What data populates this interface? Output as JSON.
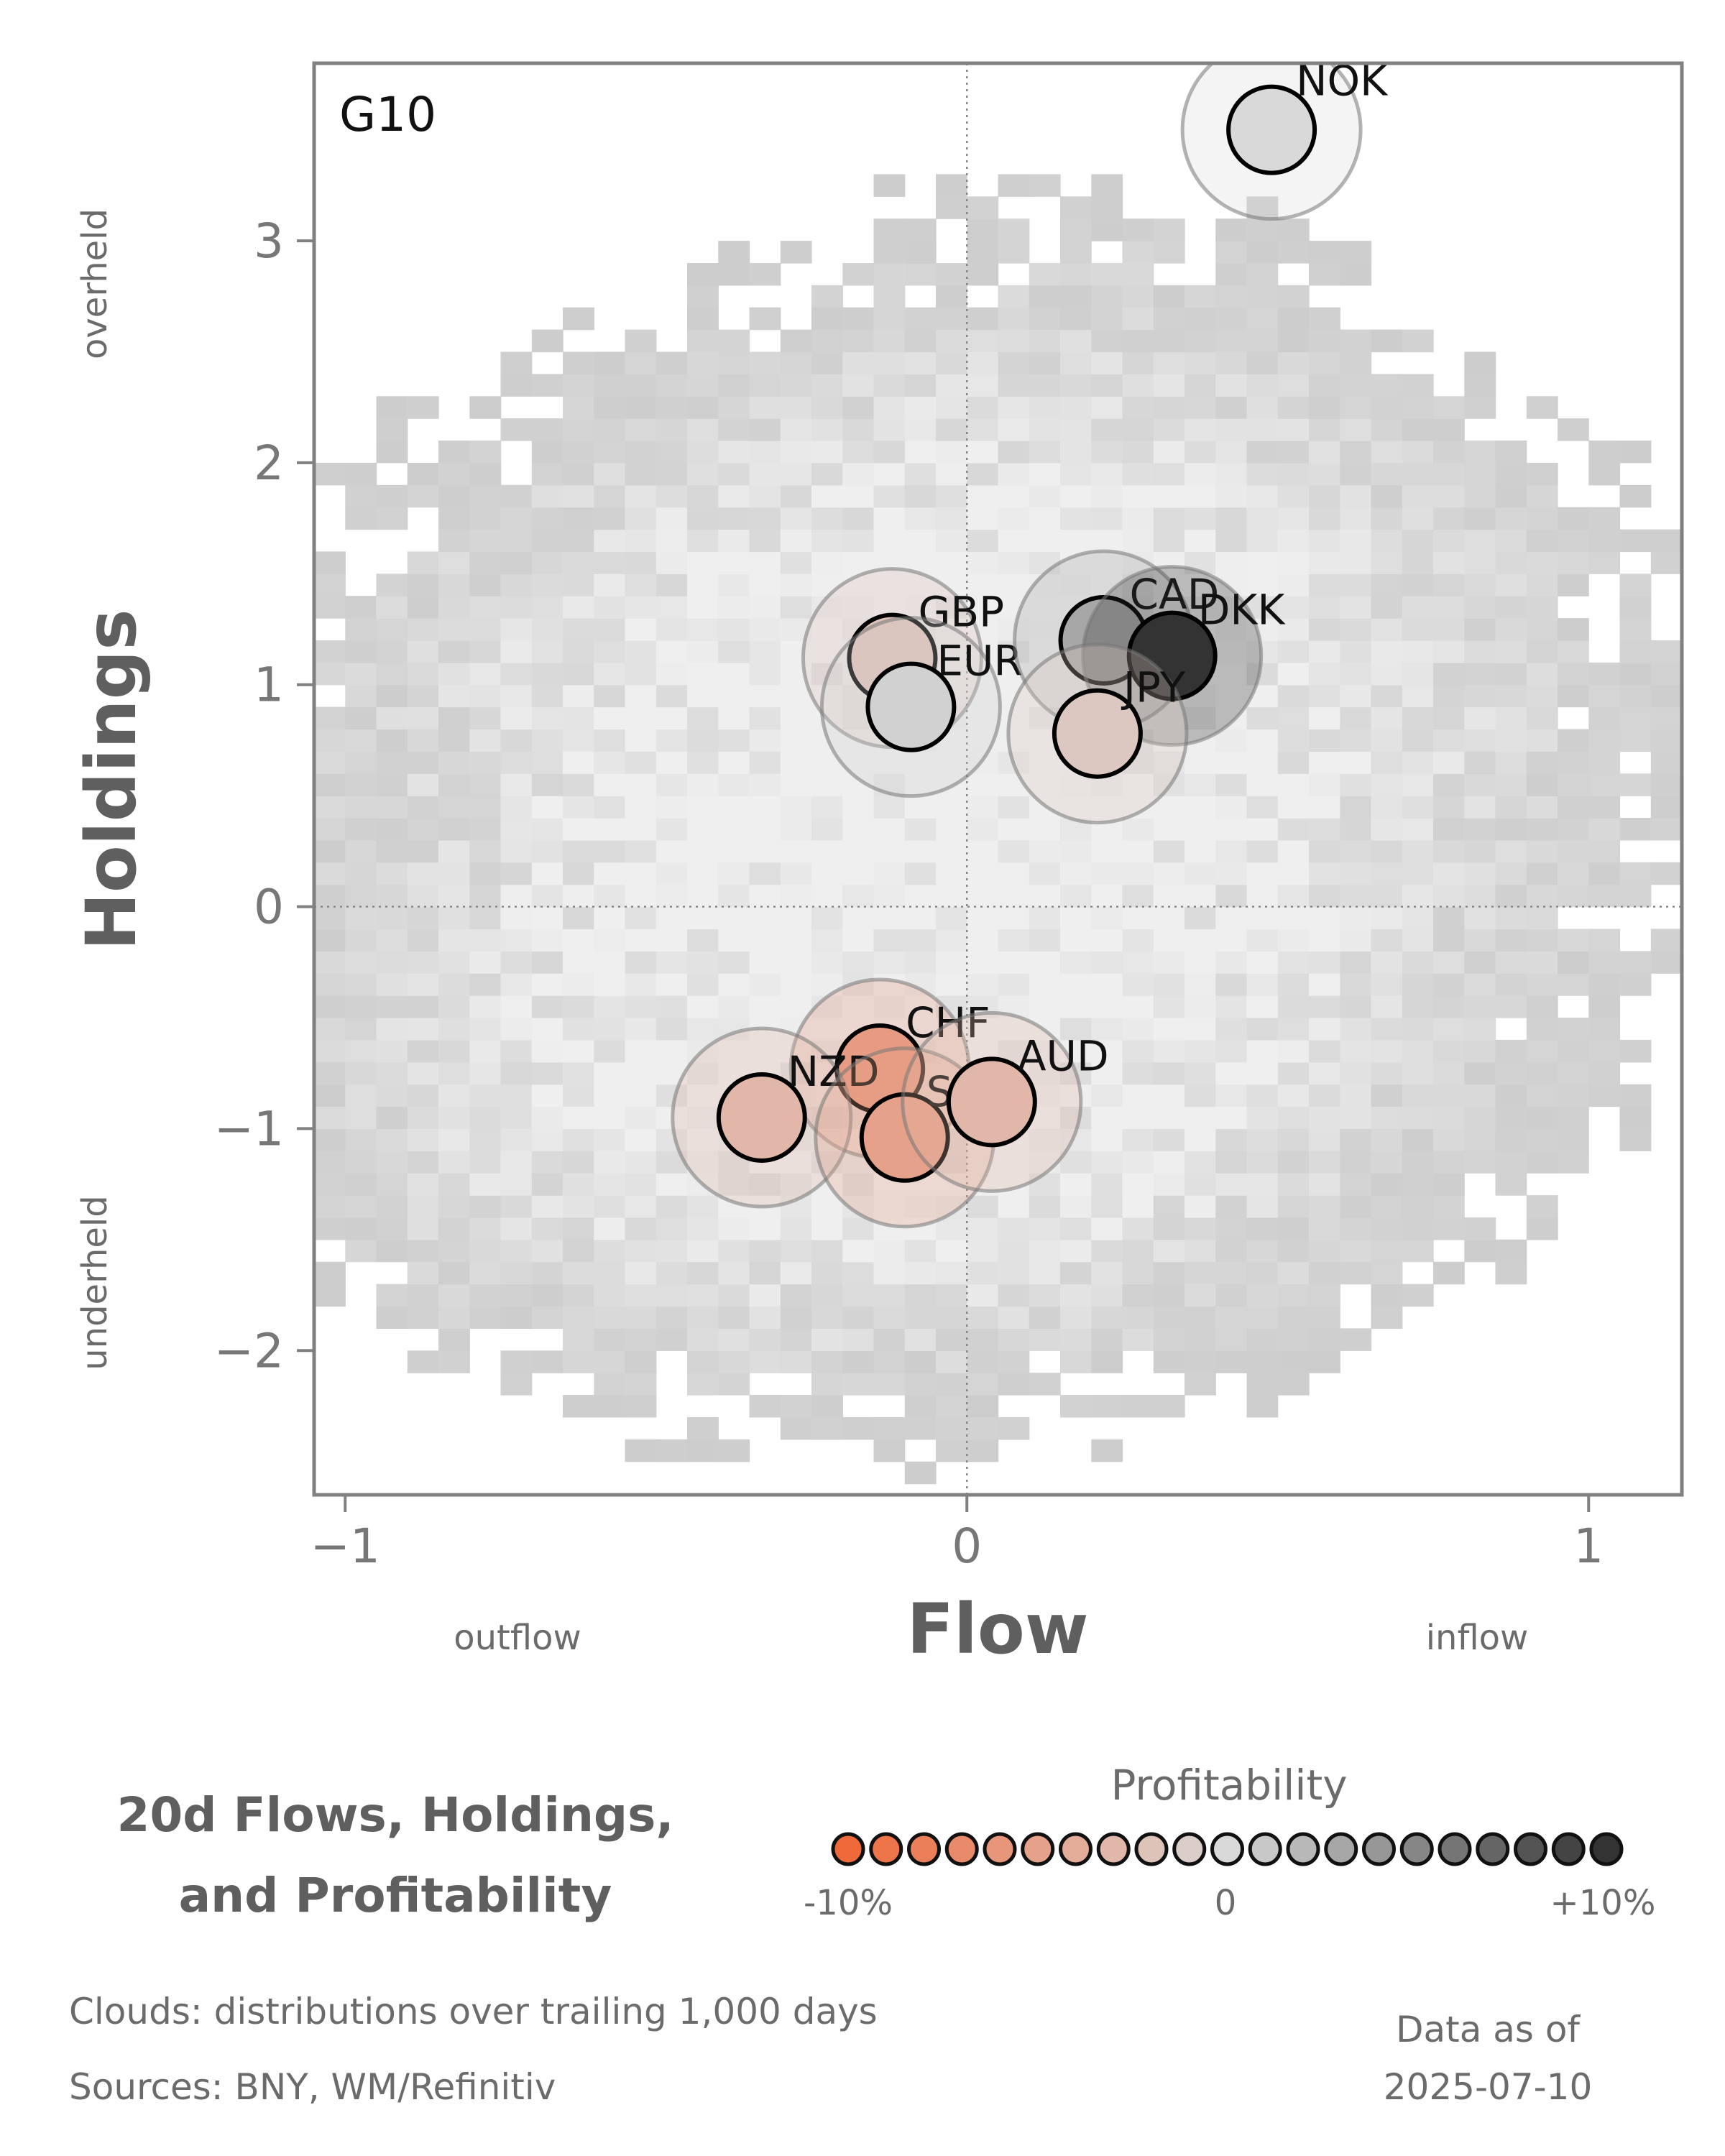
{
  "chart_data": {
    "type": "scatter",
    "panel_label": "G10",
    "title_line1": "20d Flows, Holdings,",
    "title_line2": "and Profitability",
    "xlabel": "Flow",
    "ylabel": "Holdings",
    "x_side_labels": {
      "left": "outflow",
      "right": "inflow"
    },
    "y_side_labels": {
      "top": "overheld",
      "bottom": "underheld"
    },
    "xlim": [
      -1.05,
      1.15
    ],
    "ylim": [
      -2.65,
      3.8
    ],
    "xticks": [
      {
        "value": -1,
        "label": "−1"
      },
      {
        "value": 0,
        "label": "0"
      },
      {
        "value": 1,
        "label": "1"
      }
    ],
    "yticks": [
      {
        "value": -2,
        "label": "−2"
      },
      {
        "value": -1,
        "label": "−1"
      },
      {
        "value": 0,
        "label": "0"
      },
      {
        "value": 1,
        "label": "1"
      },
      {
        "value": 2,
        "label": "2"
      },
      {
        "value": 3,
        "label": "3"
      }
    ],
    "reference_lines": {
      "x": 0,
      "y": 0
    },
    "background": "2D histogram clouds: distributions over trailing 1,000 days",
    "points": [
      {
        "currency": "NOK",
        "flow": 0.49,
        "holdings": 3.5,
        "profitability": 0.0
      },
      {
        "currency": "GBP",
        "flow": -0.12,
        "holdings": 1.12,
        "profitability": -2.0
      },
      {
        "currency": "EUR",
        "flow": -0.09,
        "holdings": 0.9,
        "profitability": 0.5
      },
      {
        "currency": "CAD",
        "flow": 0.22,
        "holdings": 1.2,
        "profitability": 3.0
      },
      {
        "currency": "DKK",
        "flow": 0.33,
        "holdings": 1.13,
        "profitability": 10.0
      },
      {
        "currency": "JPY",
        "flow": 0.21,
        "holdings": 0.78,
        "profitability": -1.5
      },
      {
        "currency": "CHF",
        "flow": -0.14,
        "holdings": -0.73,
        "profitability": -5.5
      },
      {
        "currency": "NZD",
        "flow": -0.33,
        "holdings": -0.95,
        "profitability": -3.0
      },
      {
        "currency": "SEK",
        "flow": -0.1,
        "holdings": -1.04,
        "profitability": -5.0
      },
      {
        "currency": "AUD",
        "flow": 0.04,
        "holdings": -0.88,
        "profitability": -3.0
      }
    ],
    "legend": {
      "title": "Profitability",
      "min_label": "-10%",
      "mid_label": "0",
      "max_label": "+10%",
      "range": [
        -10,
        10
      ],
      "steps": 21
    },
    "colors": {
      "negative": "#f0693a",
      "neutral": "#d9d9d9",
      "positive": "#333333"
    }
  },
  "footer": {
    "clouds_note": "Clouds:  distributions over trailing 1,000 days",
    "sources_note": "Sources:  BNY, WM/Refinitiv",
    "as_of_label": "Data as of",
    "as_of_date": "2025-07-10"
  }
}
